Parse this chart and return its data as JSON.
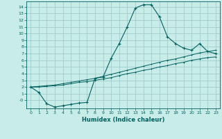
{
  "xlabel": "Humidex (Indice chaleur)",
  "bg_color": "#c8ece8",
  "grid_color": "#a0cccc",
  "line_color": "#006060",
  "xlim": [
    -0.5,
    23.5
  ],
  "ylim": [
    -1.2,
    14.8
  ],
  "xticks": [
    0,
    1,
    2,
    3,
    4,
    5,
    6,
    7,
    8,
    9,
    10,
    11,
    12,
    13,
    14,
    15,
    16,
    17,
    18,
    19,
    20,
    21,
    22,
    23
  ],
  "yticks": [
    0,
    1,
    2,
    3,
    4,
    5,
    6,
    7,
    8,
    9,
    10,
    11,
    12,
    13,
    14
  ],
  "ytick_labels": [
    "-0",
    "1",
    "2",
    "3",
    "4",
    "5",
    "6",
    "7",
    "8",
    "9",
    "10",
    "11",
    "12",
    "13",
    "14"
  ],
  "series": [
    {
      "x": [
        0,
        1,
        2,
        3,
        4,
        5,
        6,
        7,
        8,
        9,
        10,
        11,
        12,
        13,
        14,
        15,
        16,
        17,
        18,
        19,
        20,
        21,
        22,
        23
      ],
      "y": [
        2,
        1.2,
        -0.5,
        -1.0,
        -0.8,
        -0.6,
        -0.4,
        -0.3,
        3.3,
        3.5,
        6.3,
        8.5,
        11.0,
        13.8,
        14.3,
        14.3,
        12.5,
        9.5,
        8.5,
        7.8,
        7.5,
        8.5,
        7.3,
        7.0
      ]
    },
    {
      "x": [
        0,
        1,
        2,
        3,
        4,
        5,
        6,
        7,
        8,
        9,
        10,
        11,
        12,
        13,
        14,
        15,
        16,
        17,
        18,
        19,
        20,
        21,
        22,
        23
      ],
      "y": [
        2.0,
        2.1,
        2.2,
        2.3,
        2.5,
        2.7,
        2.9,
        3.1,
        3.3,
        3.6,
        3.9,
        4.2,
        4.5,
        4.8,
        5.1,
        5.4,
        5.7,
        6.0,
        6.2,
        6.5,
        6.8,
        7.1,
        7.3,
        7.5
      ]
    },
    {
      "x": [
        0,
        1,
        2,
        3,
        4,
        5,
        6,
        7,
        8,
        9,
        10,
        11,
        12,
        13,
        14,
        15,
        16,
        17,
        18,
        19,
        20,
        21,
        22,
        23
      ],
      "y": [
        2.0,
        2.0,
        2.1,
        2.2,
        2.3,
        2.5,
        2.7,
        2.8,
        3.0,
        3.2,
        3.4,
        3.7,
        4.0,
        4.2,
        4.5,
        4.7,
        5.0,
        5.2,
        5.5,
        5.7,
        6.0,
        6.2,
        6.4,
        6.5
      ]
    }
  ]
}
